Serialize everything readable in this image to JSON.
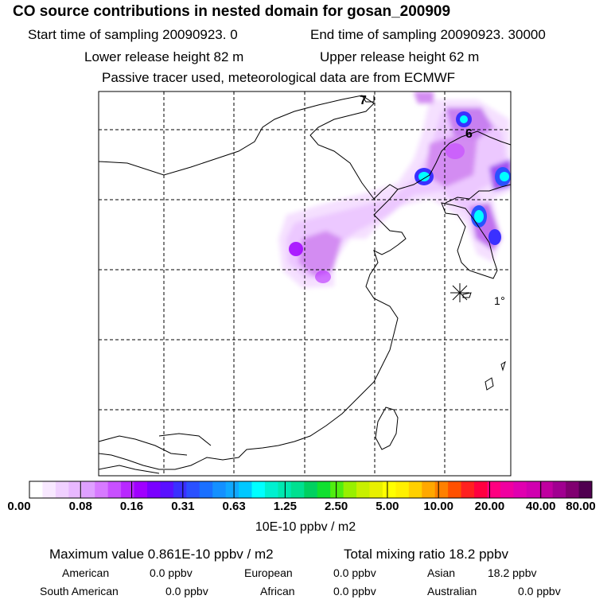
{
  "header": {
    "title": "CO  source contributions in nested domain for gosan_200909",
    "start_label": "Start time of sampling 20090923.      0",
    "end_label": "End time of sampling 20090923. 30000",
    "lower_label": "Lower release height   82 m",
    "upper_label": "Upper release height   62 m",
    "tracer_label": "Passive tracer used, meteorological data are from ECMWF"
  },
  "map": {
    "markers": [
      {
        "label": "7"
      },
      {
        "label": "6"
      },
      {
        "label": "1"
      }
    ],
    "receptor": "gosan-star-icon"
  },
  "colorbar": {
    "ticks": [
      "0.00",
      "0.08",
      "0.16",
      "0.31",
      "0.63",
      "1.25",
      "2.50",
      "5.00",
      "10.00",
      "20.00",
      "40.00",
      "80.00"
    ],
    "colors": [
      "#ffffff",
      "#f8e8ff",
      "#f0d0ff",
      "#e8b8ff",
      "#dfa0ff",
      "#d77aff",
      "#c850ff",
      "#b828ff",
      "#a000ff",
      "#7a00ff",
      "#5a10ff",
      "#3a30ff",
      "#2a50ff",
      "#1a70ff",
      "#1490ff",
      "#10a8ff",
      "#00c8ff",
      "#00ffff",
      "#00f0d0",
      "#00e8b0",
      "#00e090",
      "#00d060",
      "#10e030",
      "#50ee10",
      "#98f000",
      "#c8f000",
      "#e8f000",
      "#ffff00",
      "#fff000",
      "#ffd000",
      "#ffa800",
      "#ff8000",
      "#ff5000",
      "#ff2020",
      "#ff0040",
      "#ff0080",
      "#f000a0",
      "#e000b0",
      "#d000b0",
      "#c000a0",
      "#a00090",
      "#800070",
      "#500050"
    ],
    "unit": "10E-10 ppbv / m2"
  },
  "summary": {
    "max_value": "Maximum value  0.861E-10 ppbv / m2",
    "total_mixing": "Total mixing ratio       18.2 ppbv",
    "american_label": "American",
    "american_value": "0.0 ppbv",
    "european_label": "European",
    "european_value": "0.0 ppbv",
    "asian_label": "Asian",
    "asian_value": "18.2 ppbv",
    "south_american_label": "South American",
    "south_american_value": "0.0 ppbv",
    "african_label": "African",
    "african_value": "0.0 ppbv",
    "australian_label": "Australian",
    "australian_value": "0.0 ppbv"
  }
}
